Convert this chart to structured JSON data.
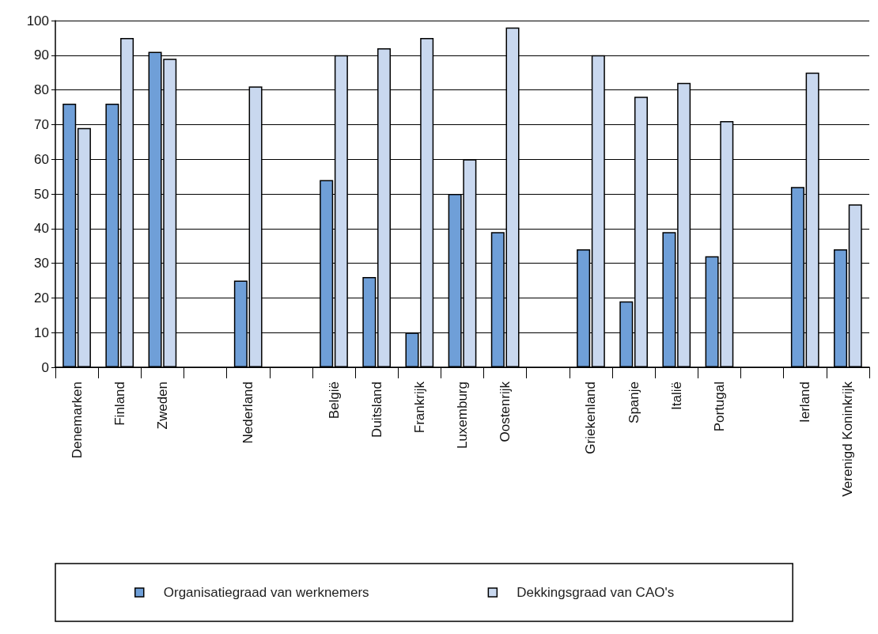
{
  "chart_data": {
    "type": "bar",
    "categories": [
      "Denemarken",
      "Finland",
      "Zweden",
      null,
      "Nederland",
      null,
      "België",
      "Duitsland",
      "Frankrijk",
      "Luxemburg",
      "Oostenrijk",
      null,
      "Griekenland",
      "Spanje",
      "Italië",
      "Portugal",
      null,
      "Ierland",
      "Verenigd Koninkrijk"
    ],
    "series": [
      {
        "name": "Organisatiegraad van werknemers",
        "color": "#6f9fd8",
        "values": [
          76,
          76,
          91,
          null,
          25,
          null,
          54,
          26,
          10,
          50,
          39,
          null,
          34,
          19,
          39,
          32,
          null,
          52,
          34
        ]
      },
      {
        "name": "Dekkingsgraad van CAO's",
        "color": "#c9d8ef",
        "values": [
          69,
          95,
          89,
          null,
          81,
          null,
          90,
          92,
          95,
          60,
          98,
          null,
          90,
          78,
          82,
          71,
          null,
          85,
          47
        ]
      }
    ],
    "ylim": [
      0,
      100
    ],
    "yticks": [
      0,
      10,
      20,
      30,
      40,
      50,
      60,
      70,
      80,
      90,
      100
    ],
    "grid": "y",
    "legend": "bottom"
  }
}
